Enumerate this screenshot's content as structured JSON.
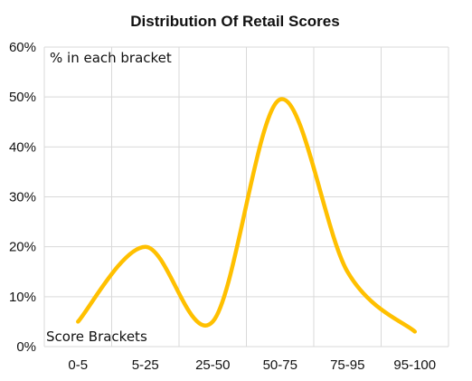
{
  "chart_data": {
    "type": "line",
    "title": "Distribution  Of Retail Scores",
    "ylabel": "% in each bracket",
    "xlabel": "Score Brackets",
    "categories": [
      "0-5",
      "5-25",
      "25-50",
      "50-75",
      "75-95",
      "95-100"
    ],
    "series": [
      {
        "values": [
          5,
          20,
          5,
          49.5,
          15,
          3
        ],
        "color": "#FFC000"
      }
    ],
    "ylim": [
      0,
      60
    ],
    "yticks": [
      "0%",
      "10%",
      "20%",
      "30%",
      "40%",
      "50%",
      "60%"
    ],
    "smooth": true,
    "grid": true
  }
}
